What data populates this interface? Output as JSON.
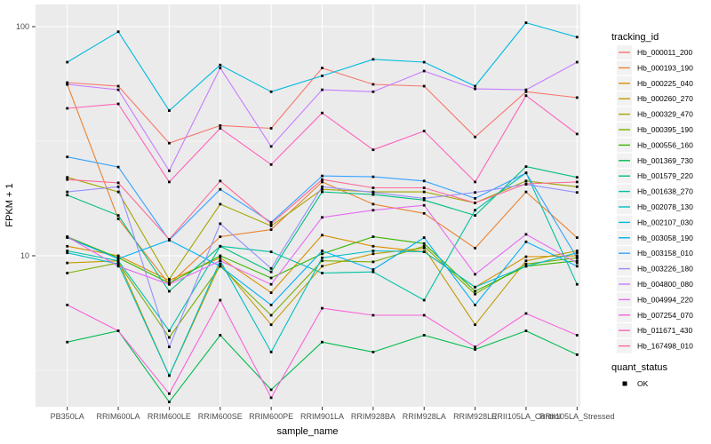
{
  "chart_data": {
    "type": "line",
    "title": "",
    "xlabel": "sample_name",
    "ylabel": "FPKM + 1",
    "y_scale": "log10",
    "y_ticks": [
      100,
      10
    ],
    "ylim": [
      2.2,
      118
    ],
    "grid": "white-on-gray",
    "panel_bg": "#EBEBEB",
    "grid_color": "#FFFFFF",
    "point_color": "#000000",
    "categories": [
      "PB350LA",
      "RRIM600LA",
      "RRIM600LE",
      "RRIM600SE",
      "RRIM600PE",
      "RRIM901LA",
      "RRIM928BA",
      "RRIM928LA",
      "RRIM928LE",
      "RRII105LA_Control",
      "RRII105LA_Stressed"
    ],
    "legend": {
      "title": "tracking_id",
      "position": "right"
    },
    "quant_status": {
      "title": "quant_status",
      "items": [
        {
          "label": "OK",
          "shape": "square",
          "color": "#000000"
        }
      ]
    },
    "series": [
      {
        "name": "Hb_000011_200",
        "color": "#F8766D",
        "values": [
          57,
          55,
          31,
          37,
          36,
          66,
          56,
          55,
          33,
          52,
          49
        ]
      },
      {
        "name": "Hb_000193_190",
        "color": "#EA8331",
        "values": [
          56,
          14.5,
          7.5,
          12.1,
          13,
          21,
          16.8,
          15.3,
          10.8,
          19,
          12
        ]
      },
      {
        "name": "Hb_000225_040",
        "color": "#D89000",
        "values": [
          11,
          10,
          7.8,
          9.8,
          6.9,
          12.3,
          11,
          10.4,
          7.3,
          9.9,
          10
        ]
      },
      {
        "name": "Hb_000260_270",
        "color": "#C09B00",
        "values": [
          9.3,
          9.5,
          3,
          9.2,
          5,
          9,
          10.2,
          10.8,
          5,
          9.5,
          10.5
        ]
      },
      {
        "name": "Hb_000329_470",
        "color": "#A3A500",
        "values": [
          22,
          19,
          7.9,
          16.8,
          13.5,
          19.5,
          19,
          19,
          17,
          21.2,
          20
        ]
      },
      {
        "name": "Hb_000395_190",
        "color": "#7CAE00",
        "values": [
          8.4,
          9.3,
          4.4,
          9,
          5.5,
          9.5,
          9.4,
          11,
          6.8,
          9.2,
          9.8
        ]
      },
      {
        "name": "Hb_000556_160",
        "color": "#39B600",
        "values": [
          12.1,
          9.8,
          7.6,
          10,
          8,
          10.2,
          12.1,
          11.3,
          7,
          9,
          9.5
        ]
      },
      {
        "name": "Hb_001369_730",
        "color": "#00BB4E",
        "values": [
          4.2,
          4.7,
          2.3,
          4.5,
          2.6,
          4.2,
          3.8,
          4.5,
          3.9,
          4.7,
          3.7
        ]
      },
      {
        "name": "Hb_001579_220",
        "color": "#00BF7D",
        "values": [
          18.4,
          15,
          7,
          11,
          8.5,
          19,
          18.5,
          17.5,
          15,
          24.5,
          22
        ]
      },
      {
        "name": "Hb_001638_270",
        "color": "#00C1A3",
        "values": [
          10.5,
          9.5,
          4.7,
          11,
          10.4,
          8.4,
          8.5,
          6.4,
          15.8,
          23,
          7.5
        ]
      },
      {
        "name": "Hb_002078_130",
        "color": "#00BFC4",
        "values": [
          10.3,
          9.2,
          3,
          9.5,
          3.8,
          9.8,
          10.5,
          10.4,
          7.3,
          9,
          10.3
        ]
      },
      {
        "name": "Hb_002107_030",
        "color": "#00BAE0",
        "values": [
          70,
          95,
          43,
          68,
          52,
          61,
          72,
          70,
          55,
          104,
          90
        ]
      },
      {
        "name": "Hb_003058_190",
        "color": "#00B0F6",
        "values": [
          12,
          9.7,
          11.7,
          9,
          6.1,
          10.5,
          8.7,
          12,
          6.1,
          11.5,
          9
        ]
      },
      {
        "name": "Hb_003158_010",
        "color": "#35A2FF",
        "values": [
          27,
          24.4,
          11.7,
          19.5,
          14,
          22.3,
          22.1,
          21.2,
          17.8,
          23,
          9.8
        ]
      },
      {
        "name": "Hb_003226_180",
        "color": "#9590FF",
        "values": [
          19,
          20,
          4,
          13.8,
          8.8,
          20,
          18.9,
          17.8,
          18.9,
          20.5,
          18.9
        ]
      },
      {
        "name": "Hb_004800_080",
        "color": "#C77CFF",
        "values": [
          56,
          53,
          23.5,
          66,
          30,
          53,
          52,
          64,
          53.5,
          53,
          70
        ]
      },
      {
        "name": "Hb_004994_220",
        "color": "#E76BF3",
        "values": [
          12.1,
          9,
          7.5,
          9.5,
          7.5,
          14.7,
          15.8,
          16.6,
          8.3,
          12.4,
          9.3
        ]
      },
      {
        "name": "Hb_007254_070",
        "color": "#FA62DB",
        "values": [
          6.1,
          4.7,
          2.5,
          6.4,
          2.4,
          5.9,
          5.5,
          5.5,
          4,
          5.6,
          4.5
        ]
      },
      {
        "name": "Hb_011671_430",
        "color": "#FF62BC",
        "values": [
          44,
          46,
          21,
          36,
          25,
          42,
          29,
          35,
          21,
          50,
          34
        ]
      },
      {
        "name": "Hb_167498_010",
        "color": "#FF6A98",
        "values": [
          21.5,
          20.8,
          11.8,
          21.2,
          13.8,
          21.5,
          19.8,
          19.8,
          17,
          20.6,
          21
        ]
      }
    ]
  }
}
